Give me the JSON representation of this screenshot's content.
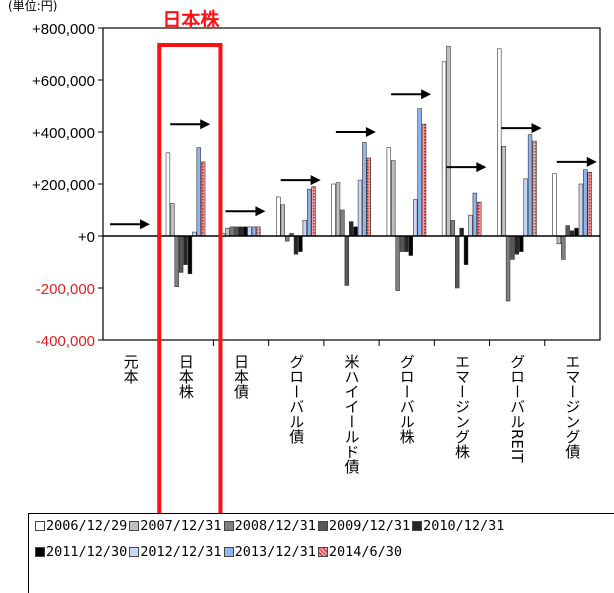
{
  "chart_data": {
    "type": "bar",
    "unit_label": "(単位:円)",
    "highlight_label": "日本株",
    "highlight_category": "日本株",
    "y_ticks": [
      "+800,000",
      "+600,000",
      "+400,000",
      "+200,000",
      "+0",
      "-200,000",
      "-400,000"
    ],
    "ylim": [
      -400000,
      800000
    ],
    "categories": [
      "元本",
      "日本株",
      "日本債",
      "グローバル債",
      "米ハイイールド債",
      "グローバル株",
      "エマージング株",
      "グローバルREIT",
      "エマージング債"
    ],
    "series": [
      {
        "name": "2006/12/29",
        "color": "#ffffff",
        "values": [
          null,
          320000,
          10000,
          150000,
          200000,
          340000,
          670000,
          720000,
          240000
        ]
      },
      {
        "name": "2007/12/31",
        "color": "#c0c0c0",
        "values": [
          null,
          125000,
          30000,
          120000,
          205000,
          290000,
          730000,
          345000,
          -30000
        ]
      },
      {
        "name": "2008/12/31",
        "color": "#808080",
        "values": [
          null,
          -195000,
          35000,
          -20000,
          100000,
          -210000,
          60000,
          -250000,
          -90000
        ]
      },
      {
        "name": "2009/12/31",
        "color": "#595959",
        "values": [
          null,
          -140000,
          35000,
          10000,
          -190000,
          -60000,
          -200000,
          -90000,
          40000
        ]
      },
      {
        "name": "2010/12/31",
        "color": "#262626",
        "values": [
          null,
          -110000,
          35000,
          -70000,
          55000,
          -60000,
          30000,
          -70000,
          20000
        ]
      },
      {
        "name": "2011/12/30",
        "color": "#000000",
        "values": [
          null,
          -145000,
          35000,
          -60000,
          35000,
          -75000,
          -110000,
          -60000,
          30000
        ]
      },
      {
        "name": "2012/12/31",
        "color": "#c9d7f7",
        "values": [
          null,
          15000,
          35000,
          60000,
          215000,
          140000,
          80000,
          220000,
          200000
        ]
      },
      {
        "name": "2013/12/31",
        "color": "#8fb4ee",
        "values": [
          null,
          340000,
          35000,
          180000,
          360000,
          490000,
          165000,
          390000,
          255000
        ]
      },
      {
        "name": "2014/6/30",
        "color": "#f0a0a0",
        "pattern": "dots",
        "values": [
          null,
          285000,
          35000,
          190000,
          300000,
          430000,
          130000,
          365000,
          245000
        ]
      }
    ],
    "arrows": [
      {
        "category": "元本",
        "value": 45000
      },
      {
        "category": "日本株",
        "value": 430000
      },
      {
        "category": "日本債",
        "value": 95000
      },
      {
        "category": "グローバル債",
        "value": 215000
      },
      {
        "category": "米ハイイールド債",
        "value": 400000
      },
      {
        "category": "グローバル株",
        "value": 545000
      },
      {
        "category": "エマージング株",
        "value": 265000
      },
      {
        "category": "グローバルREIT",
        "value": 415000
      },
      {
        "category": "エマージング債",
        "value": 285000
      }
    ],
    "legend_rows": [
      [
        "2006/12/29",
        "2007/12/31",
        "2008/12/31",
        "2009/12/31",
        "2010/12/31"
      ],
      [
        "2011/12/30",
        "2012/12/31",
        "2013/12/31",
        "2014/6/30"
      ]
    ],
    "grid": false,
    "legend_position": "bottom"
  }
}
